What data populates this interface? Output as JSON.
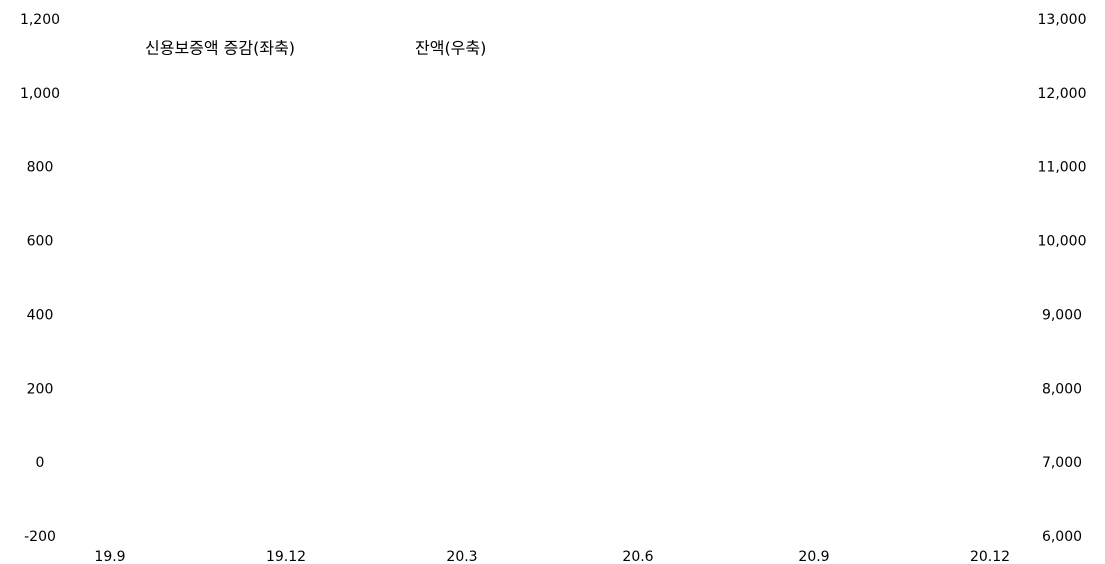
{
  "chart_data": {
    "type": "bar",
    "categories": [
      "19.9",
      "19.12",
      "20.3",
      "20.6",
      "20.9",
      "20.12"
    ],
    "series": [
      {
        "name": "신용보증액 증감(좌축)",
        "type": "bar",
        "values": [
          null,
          null,
          null,
          null,
          null,
          null
        ]
      },
      {
        "name": "잔액(우축)",
        "type": "line",
        "axis": "y2",
        "values": [
          null,
          null,
          null,
          null,
          null,
          null
        ]
      }
    ],
    "ylim": [
      -200,
      1200
    ],
    "yticks": [
      -200,
      0,
      200,
      400,
      600,
      800,
      {
        "value": 1000,
        "label": "1,000"
      },
      {
        "value": 1200,
        "label": "1,200"
      }
    ],
    "y2lim": [
      6000,
      13000
    ],
    "y2ticks": [
      {
        "value": 6000,
        "label": "6,000"
      },
      {
        "value": 7000,
        "label": "7,000"
      },
      {
        "value": 8000,
        "label": "8,000"
      },
      {
        "value": 9000,
        "label": "9,000"
      },
      {
        "value": 10000,
        "label": "10,000"
      },
      {
        "value": 11000,
        "label": "11,000"
      },
      {
        "value": 12000,
        "label": "12,000"
      },
      {
        "value": 13000,
        "label": "13,000"
      }
    ],
    "grid": false
  }
}
